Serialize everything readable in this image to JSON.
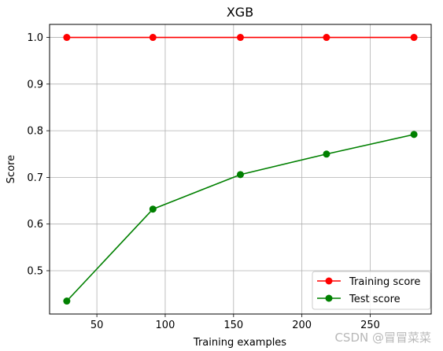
{
  "chart_data": {
    "type": "line",
    "title": "XGB",
    "xlabel": "Training examples",
    "ylabel": "Score",
    "x": [
      28,
      91,
      155,
      218,
      282
    ],
    "xlim": [
      15.4,
      294.6
    ],
    "ylim": [
      0.4072,
      1.0279
    ],
    "xticks": [
      50,
      100,
      150,
      200,
      250
    ],
    "yticks": [
      0.5,
      0.6,
      0.7,
      0.8,
      0.9,
      1.0
    ],
    "xtick_labels": [
      "50",
      "100",
      "150",
      "200",
      "250"
    ],
    "ytick_labels": [
      "0.5",
      "0.6",
      "0.7",
      "0.8",
      "0.9",
      "1.0"
    ],
    "grid": true,
    "legend_position": "lower-right",
    "series": [
      {
        "name": "Training score",
        "color": "#ff0000",
        "marker": "circle",
        "values": [
          1.0,
          1.0,
          1.0,
          1.0,
          1.0
        ]
      },
      {
        "name": "Test score",
        "color": "#008000",
        "marker": "circle",
        "values": [
          0.435,
          0.632,
          0.706,
          0.75,
          0.792
        ]
      }
    ]
  },
  "watermark": "CSDN @冒冒菜菜"
}
